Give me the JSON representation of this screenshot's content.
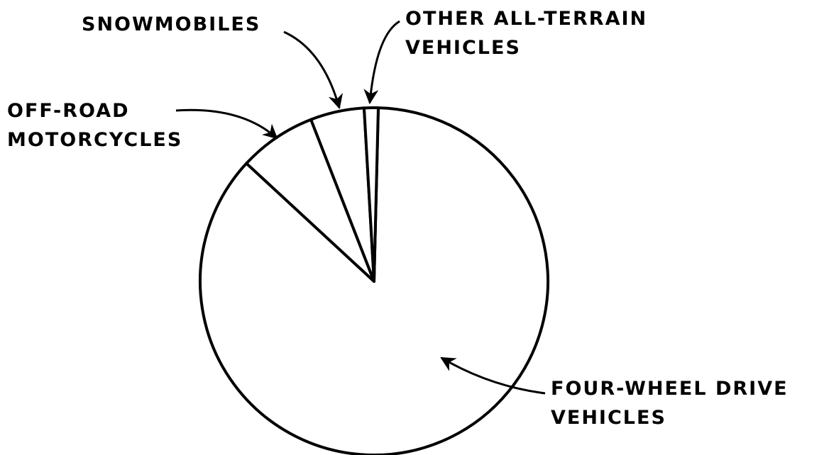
{
  "chart_data": {
    "type": "pie",
    "categories": [
      "FOUR-WHEEL DRIVE\nVEHICLES",
      "OFF-ROAD\nMOTORCYCLES",
      "SNOWMOBILES",
      "OTHER ALL-TERRAIN\nVEHICLES"
    ],
    "values": [
      86.5,
      7.2,
      5,
      1.3
    ],
    "color": "#ffffff"
  }
}
